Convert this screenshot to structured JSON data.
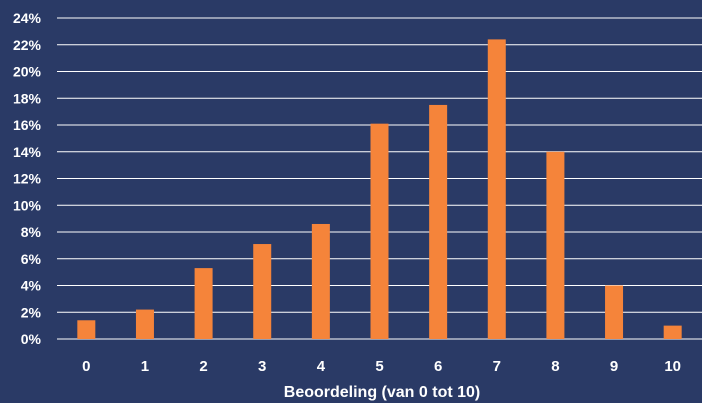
{
  "colors": {
    "background": "#2a3a66",
    "bar": "#f5843a",
    "grid": "#ffffff",
    "text": "#ffffff"
  },
  "chart_data": {
    "type": "bar",
    "title": "",
    "xlabel": "Beoordeling (van 0 tot 10)",
    "ylabel": "",
    "categories": [
      "0",
      "1",
      "2",
      "3",
      "4",
      "5",
      "6",
      "7",
      "8",
      "9",
      "10"
    ],
    "values": [
      1.4,
      2.2,
      5.3,
      7.1,
      8.6,
      16.1,
      17.5,
      22.4,
      14.0,
      4.0,
      1.0
    ],
    "unit": "%",
    "ylim": [
      0,
      24
    ],
    "yticks": [
      0,
      2,
      4,
      6,
      8,
      10,
      12,
      14,
      16,
      18,
      20,
      22,
      24
    ],
    "ytick_labels": [
      "0%",
      "2%",
      "4%",
      "6%",
      "8%",
      "10%",
      "12%",
      "14%",
      "16%",
      "18%",
      "20%",
      "22%",
      "24%"
    ],
    "grid": true,
    "legend": "none"
  }
}
